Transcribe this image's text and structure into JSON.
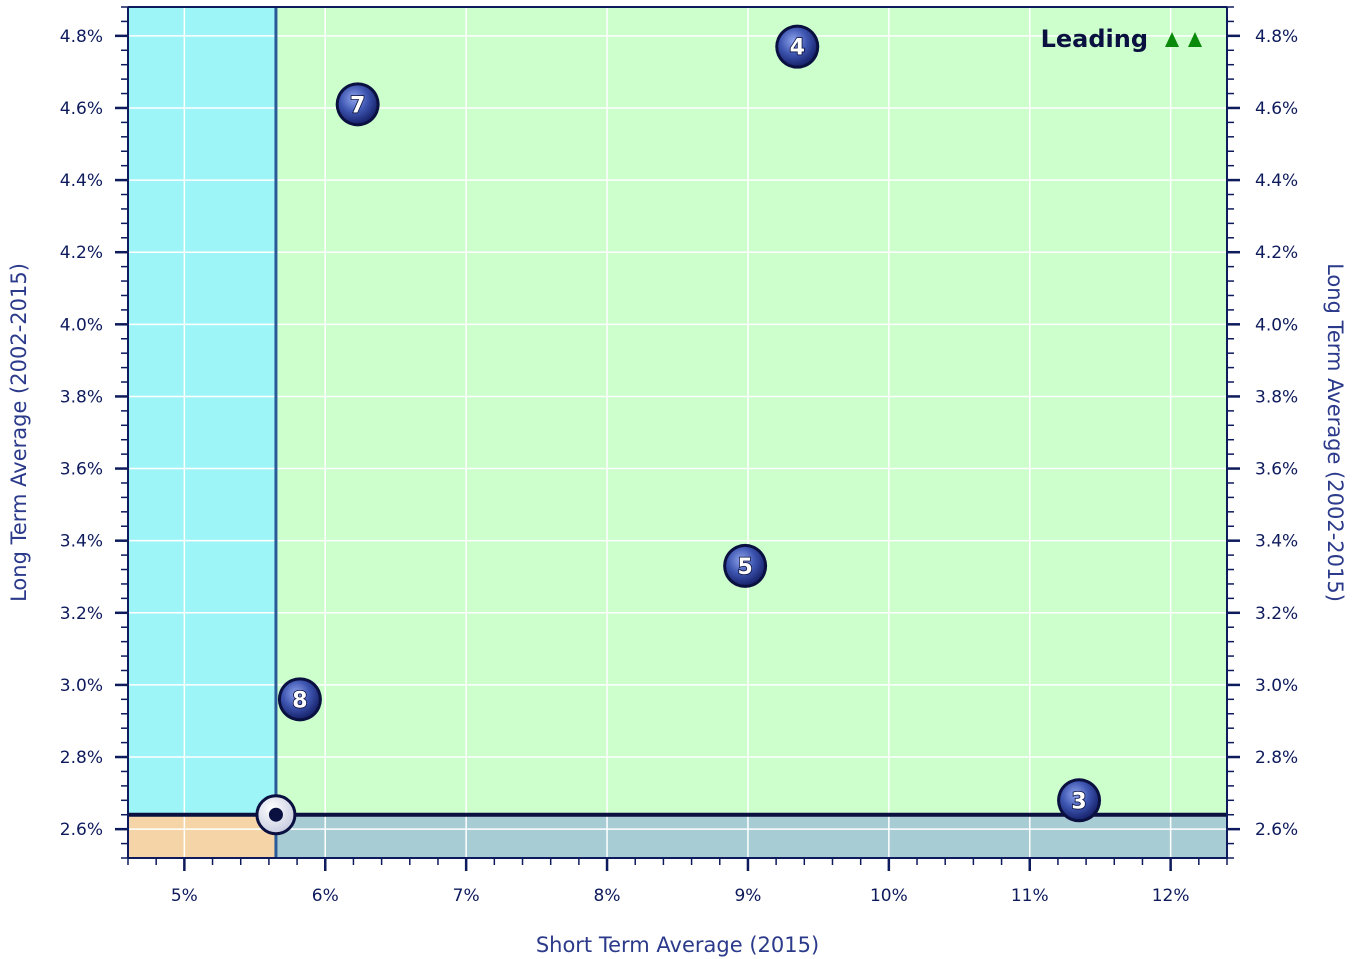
{
  "chart_data": {
    "type": "scatter",
    "title": "",
    "xlabel": "Short Term Average (2015)",
    "ylabel": "Long Term Average (2002-2015)",
    "ylabel_right": "Long Term Average (2002-2015)",
    "xlim": [
      4.6,
      12.4
    ],
    "ylim": [
      2.52,
      4.88
    ],
    "x_ticks": [
      5,
      6,
      7,
      8,
      9,
      10,
      11,
      12
    ],
    "x_tick_labels": [
      "5%",
      "6%",
      "7%",
      "8%",
      "9%",
      "10%",
      "11%",
      "12%"
    ],
    "y_ticks": [
      2.6,
      2.8,
      3.0,
      3.2,
      3.4,
      3.6,
      3.8,
      4.0,
      4.2,
      4.4,
      4.6,
      4.8
    ],
    "y_tick_labels": [
      "2.6%",
      "2.8%",
      "3.0%",
      "3.2%",
      "3.4%",
      "3.6%",
      "3.8%",
      "4.0%",
      "4.2%",
      "4.4%",
      "4.6%",
      "4.8%"
    ],
    "grid": true,
    "reference": {
      "x": 5.65,
      "y": 2.64
    },
    "quadrant_label": "Leading",
    "points": [
      {
        "label": "4",
        "x": 9.35,
        "y": 4.77
      },
      {
        "label": "7",
        "x": 6.23,
        "y": 4.61
      },
      {
        "label": "5",
        "x": 8.98,
        "y": 3.33
      },
      {
        "label": "8",
        "x": 5.82,
        "y": 2.96
      },
      {
        "label": "3",
        "x": 11.35,
        "y": 2.68
      }
    ],
    "colors": {
      "quadrant_top_right": "#ccffcc",
      "quadrant_top_left": "#9ef5f7",
      "quadrant_bottom_left": "#f5d5a8",
      "quadrant_bottom_right": "#a8ccd4",
      "marker": "#3d55b0",
      "axis": "#0d1a5c",
      "arrow": "#0a8a0a"
    }
  }
}
